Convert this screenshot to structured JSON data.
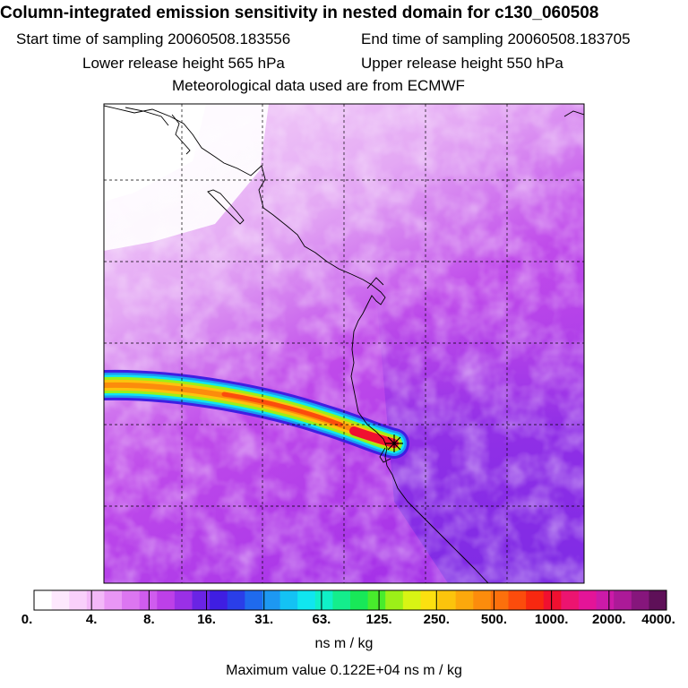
{
  "header": {
    "title": "Column-integrated emission sensitivity in nested domain for c130_060508",
    "start_label": "Start time of sampling 20060508.183556",
    "end_label": "End time of sampling 20060508.183705",
    "lower_label": "Lower release height  565 hPa",
    "upper_label": "Upper release height  550 hPa",
    "met_label": "Meteorological data used are from ECMWF"
  },
  "legend": {
    "tick_labels": [
      "0.",
      "4.",
      "8.",
      "16.",
      "31.",
      "63.",
      "125.",
      "250.",
      "500.",
      "1000.",
      "2000.",
      "4000."
    ],
    "colors": [
      "#ffffff",
      "#fde8fd",
      "#f9d0fb",
      "#f3b8f8",
      "#e996f5",
      "#dc76f1",
      "#cf5cee",
      "#bd40e8",
      "#9a30e6",
      "#6a24e4",
      "#3f1ee2",
      "#2a3ee8",
      "#1f6aee",
      "#1d98f2",
      "#14c2f4",
      "#10e6f0",
      "#10f0c8",
      "#14ee8c",
      "#18e858",
      "#48ec2c",
      "#9cf018",
      "#d8f414",
      "#fce010",
      "#fcc40c",
      "#fca80c",
      "#fc8c0c",
      "#fc700c",
      "#fc4c0c",
      "#f82810",
      "#f01030",
      "#ec1470",
      "#e41498",
      "#cc1aa8",
      "#ac1a98",
      "#86167c",
      "#5e1058"
    ],
    "units": "ns m / kg"
  },
  "footer": {
    "max_label": "Maximum value  0.122E+04 ns m / kg"
  },
  "map_data": {
    "max_value": 1220,
    "release_marker": "release-point-star"
  }
}
